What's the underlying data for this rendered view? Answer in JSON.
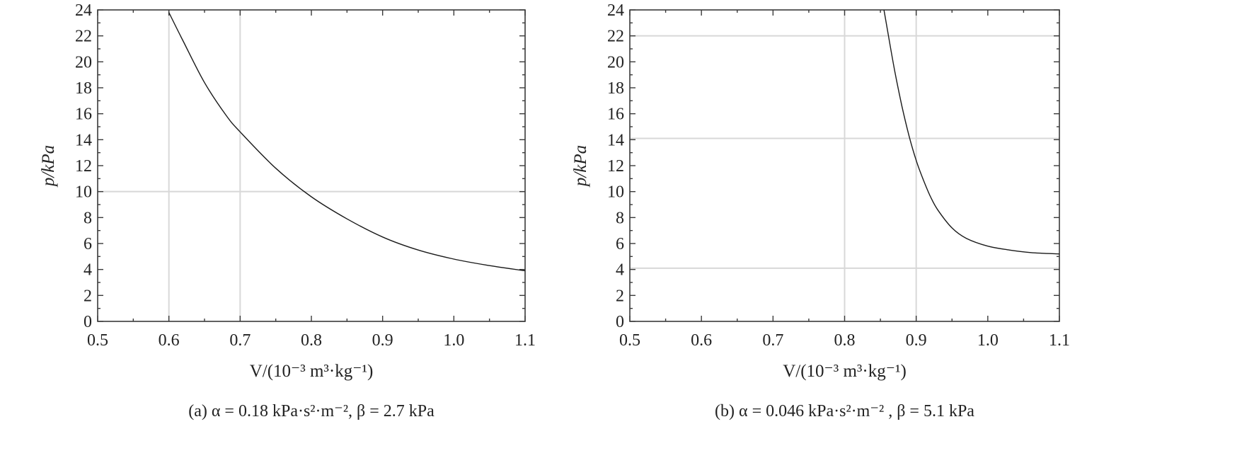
{
  "chart_data": [
    {
      "type": "line",
      "title": "",
      "caption": "(a) α = 0.18 kPa·s²·m⁻², β = 2.7 kPa",
      "xlabel": "V/(10⁻³ m³·kg⁻¹)",
      "ylabel": "p/kPa",
      "xlim": [
        0.5,
        1.1
      ],
      "ylim": [
        0,
        24
      ],
      "xticks": [
        "0.5",
        "0.6",
        "0.7",
        "0.8",
        "0.9",
        "1.0",
        "1.1"
      ],
      "yticks": [
        "0",
        "2",
        "4",
        "6",
        "8",
        "10",
        "12",
        "14",
        "16",
        "18",
        "20",
        "22",
        "24"
      ],
      "grid_x": [
        0.6,
        0.7
      ],
      "grid_y": [
        10
      ],
      "series": [
        {
          "x": [
            0.6,
            0.62,
            0.65,
            0.68,
            0.7,
            0.75,
            0.8,
            0.85,
            0.9,
            0.95,
            1.0,
            1.05,
            1.1
          ],
          "y": [
            23.8,
            21.6,
            18.4,
            15.9,
            14.6,
            11.8,
            9.6,
            7.9,
            6.5,
            5.5,
            4.8,
            4.3,
            3.9
          ]
        }
      ]
    },
    {
      "type": "line",
      "title": "",
      "caption": "(b) α = 0.046 kPa·s²·m⁻² , β = 5.1 kPa",
      "xlabel": "V/(10⁻³ m³·kg⁻¹)",
      "ylabel": "p/kPa",
      "xlim": [
        0.5,
        1.1
      ],
      "ylim": [
        0,
        24
      ],
      "xticks": [
        "0.5",
        "0.6",
        "0.7",
        "0.8",
        "0.9",
        "1.0",
        "1.1"
      ],
      "yticks": [
        "0",
        "2",
        "4",
        "6",
        "8",
        "10",
        "12",
        "14",
        "16",
        "18",
        "20",
        "22",
        "24"
      ],
      "grid_x": [
        0.8,
        0.9
      ],
      "grid_y": [
        4.1,
        14.1,
        22
      ],
      "series": [
        {
          "x": [
            0.855,
            0.86,
            0.87,
            0.88,
            0.89,
            0.9,
            0.91,
            0.92,
            0.93,
            0.95,
            0.97,
            1.0,
            1.03,
            1.06,
            1.1
          ],
          "y": [
            24,
            22.4,
            19.3,
            16.6,
            14.3,
            12.4,
            10.9,
            9.6,
            8.6,
            7.2,
            6.4,
            5.8,
            5.5,
            5.3,
            5.2
          ]
        }
      ]
    }
  ]
}
